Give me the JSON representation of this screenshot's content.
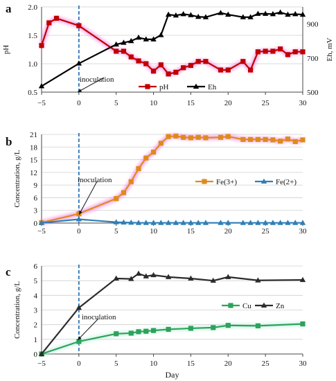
{
  "chart_data": [
    {
      "type": "line",
      "panel_label": "a",
      "xlabel": "",
      "ylabel": "pH",
      "ylabel_right": "Eh, mV",
      "xlim": [
        -5,
        30
      ],
      "ylim": [
        0.5,
        2.0
      ],
      "ylim_right": [
        500,
        1000
      ],
      "yticks": [
        "0.5",
        "1.0",
        "1.5",
        "2.0"
      ],
      "yticks_right": [
        "500",
        "700",
        "900"
      ],
      "xticks": [
        "−5",
        "0",
        "5",
        "10",
        "15",
        "20",
        "25",
        "30"
      ],
      "grid": "horizontal",
      "annotation": "inoculation",
      "legend_position": "bottom-right",
      "series": [
        {
          "name": "pH",
          "axis": "left",
          "color": "#c00000",
          "marker": "square",
          "glow": "#f06ad8",
          "points": [
            [
              -5,
              1.32
            ],
            [
              -4,
              1.72
            ],
            [
              -3,
              1.8
            ],
            [
              0,
              1.67
            ],
            [
              5,
              1.22
            ],
            [
              6,
              1.22
            ],
            [
              7,
              1.12
            ],
            [
              8,
              1.05
            ],
            [
              9,
              1.0
            ],
            [
              10,
              0.87
            ],
            [
              11,
              0.98
            ],
            [
              12,
              0.82
            ],
            [
              13,
              0.85
            ],
            [
              14,
              0.93
            ],
            [
              15,
              0.97
            ],
            [
              16,
              1.04
            ],
            [
              17,
              1.04
            ],
            [
              19,
              0.89
            ],
            [
              20,
              0.89
            ],
            [
              22,
              1.04
            ],
            [
              23,
              0.89
            ],
            [
              24,
              1.21
            ],
            [
              25,
              1.22
            ],
            [
              26,
              1.22
            ],
            [
              27,
              1.26
            ],
            [
              28,
              1.16
            ],
            [
              29,
              1.21
            ],
            [
              30,
              1.21
            ]
          ]
        },
        {
          "name": "Eh",
          "axis": "right",
          "color": "#000000",
          "marker": "triangle",
          "points": [
            [
              -5,
              535
            ],
            [
              0,
              668
            ],
            [
              5,
              780
            ],
            [
              6,
              790
            ],
            [
              7,
              800
            ],
            [
              8,
              820
            ],
            [
              9,
              810
            ],
            [
              10,
              810
            ],
            [
              11,
              835
            ],
            [
              12,
              955
            ],
            [
              13,
              950
            ],
            [
              14,
              958
            ],
            [
              15,
              952
            ],
            [
              16,
              942
            ],
            [
              17,
              940
            ],
            [
              19,
              965
            ],
            [
              20,
              955
            ],
            [
              22,
              940
            ],
            [
              23,
              940
            ],
            [
              24,
              960
            ],
            [
              25,
              960
            ],
            [
              26,
              958
            ],
            [
              27,
              968
            ],
            [
              28,
              955
            ],
            [
              29,
              958
            ],
            [
              30,
              955
            ]
          ]
        }
      ]
    },
    {
      "type": "line",
      "panel_label": "b",
      "xlabel": "",
      "ylabel": "Concentration, g/L",
      "xlim": [
        -5,
        30
      ],
      "ylim": [
        0,
        21
      ],
      "yticks": [
        "0",
        "3",
        "6",
        "9",
        "12",
        "15",
        "18",
        "21"
      ],
      "xticks": [
        "−5",
        "0",
        "5",
        "10",
        "15",
        "20",
        "25",
        "30"
      ],
      "grid": "horizontal",
      "annotation": "inoculation",
      "legend_position": "right",
      "series": [
        {
          "name": "Fe(3+)",
          "color": "#e08a1e",
          "marker": "square",
          "glow": "#f06ad8",
          "points": [
            [
              -5,
              0.1
            ],
            [
              0,
              2.2
            ],
            [
              5,
              5.8
            ],
            [
              6,
              7.2
            ],
            [
              7,
              9.8
            ],
            [
              8,
              12.9
            ],
            [
              9,
              15.4
            ],
            [
              10,
              16.8
            ],
            [
              11,
              18.9
            ],
            [
              12,
              20.5
            ],
            [
              13,
              20.6
            ],
            [
              14,
              20.3
            ],
            [
              15,
              20.2
            ],
            [
              16,
              20.3
            ],
            [
              17,
              20.2
            ],
            [
              19,
              20.3
            ],
            [
              20,
              20.5
            ],
            [
              22,
              19.8
            ],
            [
              23,
              19.8
            ],
            [
              24,
              19.8
            ],
            [
              25,
              19.8
            ],
            [
              26,
              19.7
            ],
            [
              27,
              19.4
            ],
            [
              28,
              19.9
            ],
            [
              29,
              19.3
            ],
            [
              30,
              19.7
            ]
          ]
        },
        {
          "name": "Fe(2+)",
          "color": "#2e7fb8",
          "marker": "triangle",
          "points": [
            [
              -5,
              0.05
            ],
            [
              0,
              0.9
            ],
            [
              5,
              0.2
            ],
            [
              6,
              0.15
            ],
            [
              7,
              0.1
            ],
            [
              8,
              0.05
            ],
            [
              9,
              0.05
            ],
            [
              10,
              0.05
            ],
            [
              11,
              0.05
            ],
            [
              12,
              0.05
            ],
            [
              13,
              0.05
            ],
            [
              14,
              0.05
            ],
            [
              15,
              0.05
            ],
            [
              16,
              0.05
            ],
            [
              17,
              0.05
            ],
            [
              19,
              0.05
            ],
            [
              20,
              0.05
            ],
            [
              22,
              0.05
            ],
            [
              23,
              0.05
            ],
            [
              24,
              0.05
            ],
            [
              25,
              0.05
            ],
            [
              26,
              0.05
            ],
            [
              27,
              0.05
            ],
            [
              28,
              0.05
            ],
            [
              29,
              0.05
            ],
            [
              30,
              0.05
            ]
          ]
        }
      ]
    },
    {
      "type": "line",
      "panel_label": "c",
      "xlabel": "Day",
      "ylabel": "Concentration, g/L",
      "xlim": [
        -5,
        30
      ],
      "ylim": [
        0,
        6
      ],
      "yticks": [
        "0",
        "1",
        "2",
        "3",
        "4",
        "5",
        "6"
      ],
      "xticks": [
        "−5",
        "0",
        "5",
        "10",
        "15",
        "20",
        "25",
        "30"
      ],
      "grid": "horizontal",
      "annotation": "inoculation",
      "legend_position": "right",
      "series": [
        {
          "name": "Cu",
          "color": "#2aa45a",
          "marker": "square",
          "glow": "#b8ecd8",
          "points": [
            [
              -5,
              0.0
            ],
            [
              0,
              0.85
            ],
            [
              5,
              1.38
            ],
            [
              7,
              1.42
            ],
            [
              8,
              1.52
            ],
            [
              9,
              1.55
            ],
            [
              10,
              1.6
            ],
            [
              12,
              1.68
            ],
            [
              15,
              1.75
            ],
            [
              18,
              1.8
            ],
            [
              20,
              1.95
            ],
            [
              24,
              1.92
            ],
            [
              30,
              2.05
            ]
          ]
        },
        {
          "name": "Zn",
          "color": "#2b2b2b",
          "marker": "triangle",
          "points": [
            [
              -5,
              0.0
            ],
            [
              0,
              3.15
            ],
            [
              5,
              5.15
            ],
            [
              7,
              5.12
            ],
            [
              8,
              5.48
            ],
            [
              9,
              5.3
            ],
            [
              10,
              5.38
            ],
            [
              12,
              5.25
            ],
            [
              15,
              5.15
            ],
            [
              18,
              5.0
            ],
            [
              20,
              5.25
            ],
            [
              24,
              5.02
            ],
            [
              30,
              5.05
            ]
          ]
        }
      ]
    }
  ]
}
